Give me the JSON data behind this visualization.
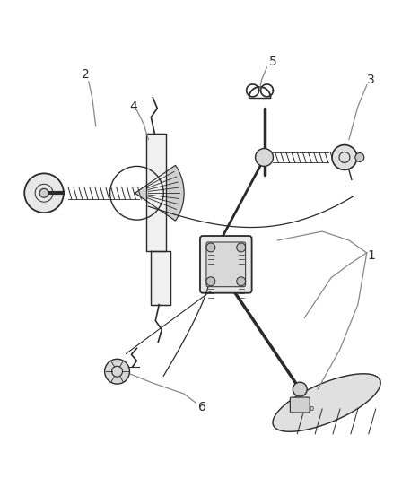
{
  "background_color": "#ffffff",
  "fig_width": 4.38,
  "fig_height": 5.33,
  "dpi": 100,
  "label_fontsize": 10,
  "line_color": "#2a2a2a",
  "line_width": 1.0,
  "leader_color": "#888888"
}
